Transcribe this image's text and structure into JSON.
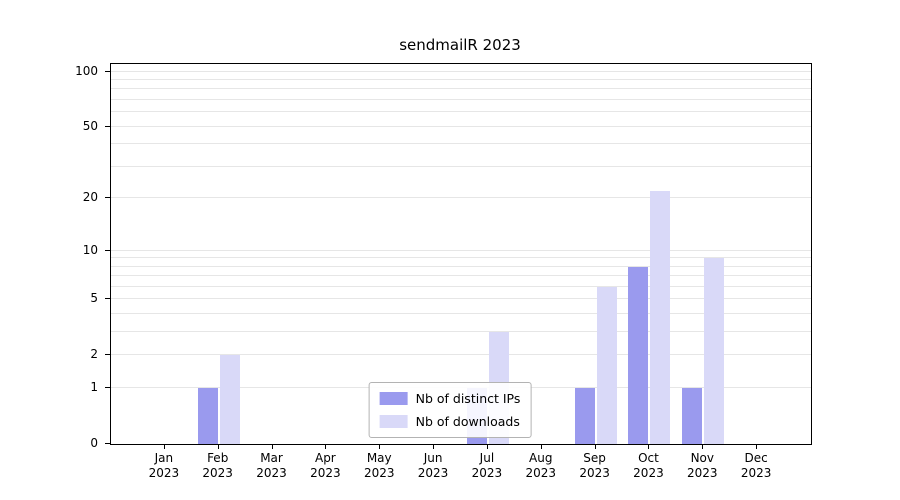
{
  "chart_data": {
    "type": "bar",
    "title": "sendmailR 2023",
    "year_label": "2023",
    "categories": [
      "Jan",
      "Feb",
      "Mar",
      "Apr",
      "May",
      "Jun",
      "Jul",
      "Aug",
      "Sep",
      "Oct",
      "Nov",
      "Dec"
    ],
    "series": [
      {
        "name": "Nb of distinct IPs",
        "color": "#9a9aee",
        "values": [
          0,
          1,
          0,
          0,
          0,
          0,
          1,
          0,
          1,
          8,
          1,
          0
        ]
      },
      {
        "name": "Nb of downloads",
        "color": "#d9d9f8",
        "values": [
          0,
          2,
          0,
          0,
          0,
          0,
          3,
          0,
          6,
          22,
          9,
          0
        ]
      }
    ],
    "yscale": "log1p",
    "ylim": [
      0,
      110
    ],
    "yticks": [
      0,
      1,
      2,
      5,
      10,
      20,
      50,
      100
    ],
    "minor_gridlines": [
      1,
      2,
      3,
      4,
      5,
      6,
      7,
      8,
      9,
      10,
      20,
      30,
      40,
      50,
      60,
      70,
      80,
      90,
      100
    ],
    "grid": true,
    "legend_position": "bottom-center",
    "background_color": "#ffffff"
  }
}
